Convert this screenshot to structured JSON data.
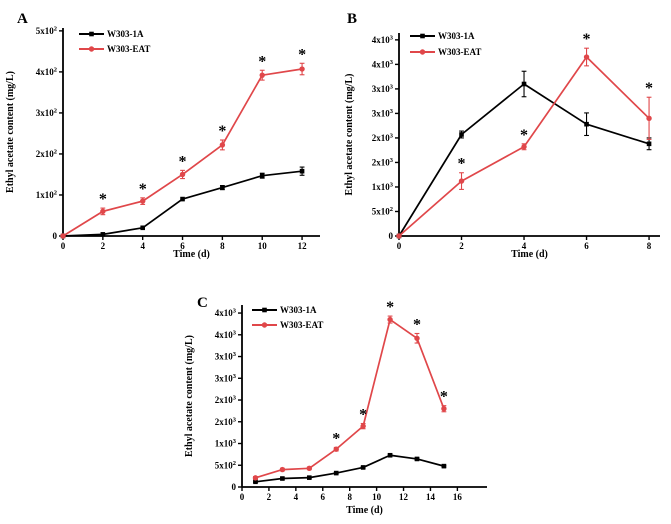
{
  "figure": {
    "background": "#ffffff",
    "panels": [
      "A",
      "B",
      "C"
    ]
  },
  "palette": {
    "black_series": "#000000",
    "red_series": "#e0474a",
    "axis": "#000000"
  },
  "chart_data": [
    {
      "type": "line",
      "panel_label": "A",
      "xlabel": "Time (d)",
      "ylabel": "Ethyl acetate content (mg/L)",
      "xlim": [
        0,
        12.9
      ],
      "ylim": [
        0,
        507
      ],
      "x_ticks": [
        0,
        2,
        4,
        6,
        8,
        10,
        12
      ],
      "y_ticks": [
        {
          "v": 0,
          "label": "0"
        },
        {
          "v": 100,
          "label": "1x10^2"
        },
        {
          "v": 200,
          "label": "2x10^2"
        },
        {
          "v": 300,
          "label": "3x10^2"
        },
        {
          "v": 400,
          "label": "4x10^2"
        },
        {
          "v": 500,
          "label": "5x10^2"
        }
      ],
      "legend_position": "top-left",
      "grid": false,
      "series": [
        {
          "name": "W303-1A",
          "color": "#000000",
          "marker": "square",
          "x": [
            0,
            2,
            4,
            6,
            8,
            10,
            12
          ],
          "y": [
            0,
            4,
            20,
            90,
            118,
            147,
            158
          ],
          "err": [
            0,
            0,
            0,
            0,
            5,
            6,
            10
          ]
        },
        {
          "name": "W303-EAT",
          "color": "#e0474a",
          "marker": "circle",
          "x": [
            0,
            2,
            4,
            6,
            8,
            10,
            12
          ],
          "y": [
            0,
            60,
            85,
            150,
            222,
            392,
            407
          ],
          "err": [
            0,
            8,
            8,
            10,
            12,
            12,
            14
          ]
        }
      ],
      "significance": {
        "symbol": "*",
        "series": "W303-EAT",
        "x": [
          2,
          4,
          6,
          8,
          10,
          12
        ]
      }
    },
    {
      "type": "line",
      "panel_label": "B",
      "xlabel": "Time (d)",
      "ylabel": "Ethyl acetate content (mg/L)",
      "xlim": [
        0,
        8.35
      ],
      "ylim": [
        0,
        4140
      ],
      "x_ticks": [
        0,
        2,
        4,
        6,
        8
      ],
      "y_ticks": [
        {
          "v": 0,
          "label": "0"
        },
        {
          "v": 500,
          "label": "5x10^2"
        },
        {
          "v": 1000,
          "label": "1x10^3"
        },
        {
          "v": 1500,
          "label": "2x10^3"
        },
        {
          "v": 2000,
          "label": "2x10^3"
        },
        {
          "v": 2500,
          "label": "3x10^3"
        },
        {
          "v": 3000,
          "label": "3x10^3"
        },
        {
          "v": 3500,
          "label": "4x10^3"
        },
        {
          "v": 4000,
          "label": "4x10^3"
        }
      ],
      "legend_position": "top-left",
      "grid": false,
      "series": [
        {
          "name": "W303-1A",
          "color": "#000000",
          "marker": "square",
          "x": [
            0,
            2,
            4,
            6,
            8
          ],
          "y": [
            0,
            2070,
            3100,
            2280,
            1880
          ],
          "err": [
            0,
            70,
            260,
            230,
            120
          ]
        },
        {
          "name": "W303-EAT",
          "color": "#e0474a",
          "marker": "circle",
          "x": [
            0,
            2,
            4,
            6,
            8
          ],
          "y": [
            0,
            1120,
            1820,
            3650,
            2400
          ],
          "err": [
            0,
            170,
            60,
            180,
            430
          ]
        }
      ],
      "significance": {
        "symbol": "*",
        "series": "W303-EAT",
        "x": [
          2,
          4,
          6,
          8
        ]
      }
    },
    {
      "type": "line",
      "panel_label": "C",
      "xlabel": "Time (d)",
      "ylabel": "Ethyl acetate content (mg/L)",
      "xlim": [
        0,
        18.2
      ],
      "ylim": [
        0,
        4185
      ],
      "x_ticks": [
        0,
        2,
        4,
        6,
        8,
        10,
        12,
        14,
        16
      ],
      "y_ticks": [
        {
          "v": 0,
          "label": "0"
        },
        {
          "v": 500,
          "label": "5x10^2"
        },
        {
          "v": 1000,
          "label": "1x10^3"
        },
        {
          "v": 1500,
          "label": "2x10^3"
        },
        {
          "v": 2000,
          "label": "2x10^3"
        },
        {
          "v": 2500,
          "label": "3x10^3"
        },
        {
          "v": 3000,
          "label": "3x10^3"
        },
        {
          "v": 3500,
          "label": "4x10^3"
        },
        {
          "v": 4000,
          "label": "4x10^3"
        }
      ],
      "legend_position": "top-left",
      "grid": false,
      "series": [
        {
          "name": "W303-1A",
          "color": "#000000",
          "marker": "square",
          "x": [
            1,
            3,
            5,
            7,
            9,
            11,
            13,
            15
          ],
          "y": [
            120,
            195,
            215,
            320,
            450,
            730,
            645,
            480
          ],
          "err": [
            15,
            15,
            15,
            15,
            20,
            25,
            25,
            20
          ]
        },
        {
          "name": "W303-EAT",
          "color": "#e0474a",
          "marker": "circle",
          "x": [
            1,
            3,
            5,
            7,
            9,
            11,
            13,
            15
          ],
          "y": [
            210,
            400,
            430,
            870,
            1400,
            3850,
            3420,
            1800
          ],
          "err": [
            30,
            30,
            30,
            40,
            60,
            80,
            110,
            70
          ]
        }
      ],
      "significance": {
        "symbol": "*",
        "series": "W303-EAT",
        "x": [
          7,
          9,
          11,
          13,
          15
        ]
      }
    }
  ]
}
